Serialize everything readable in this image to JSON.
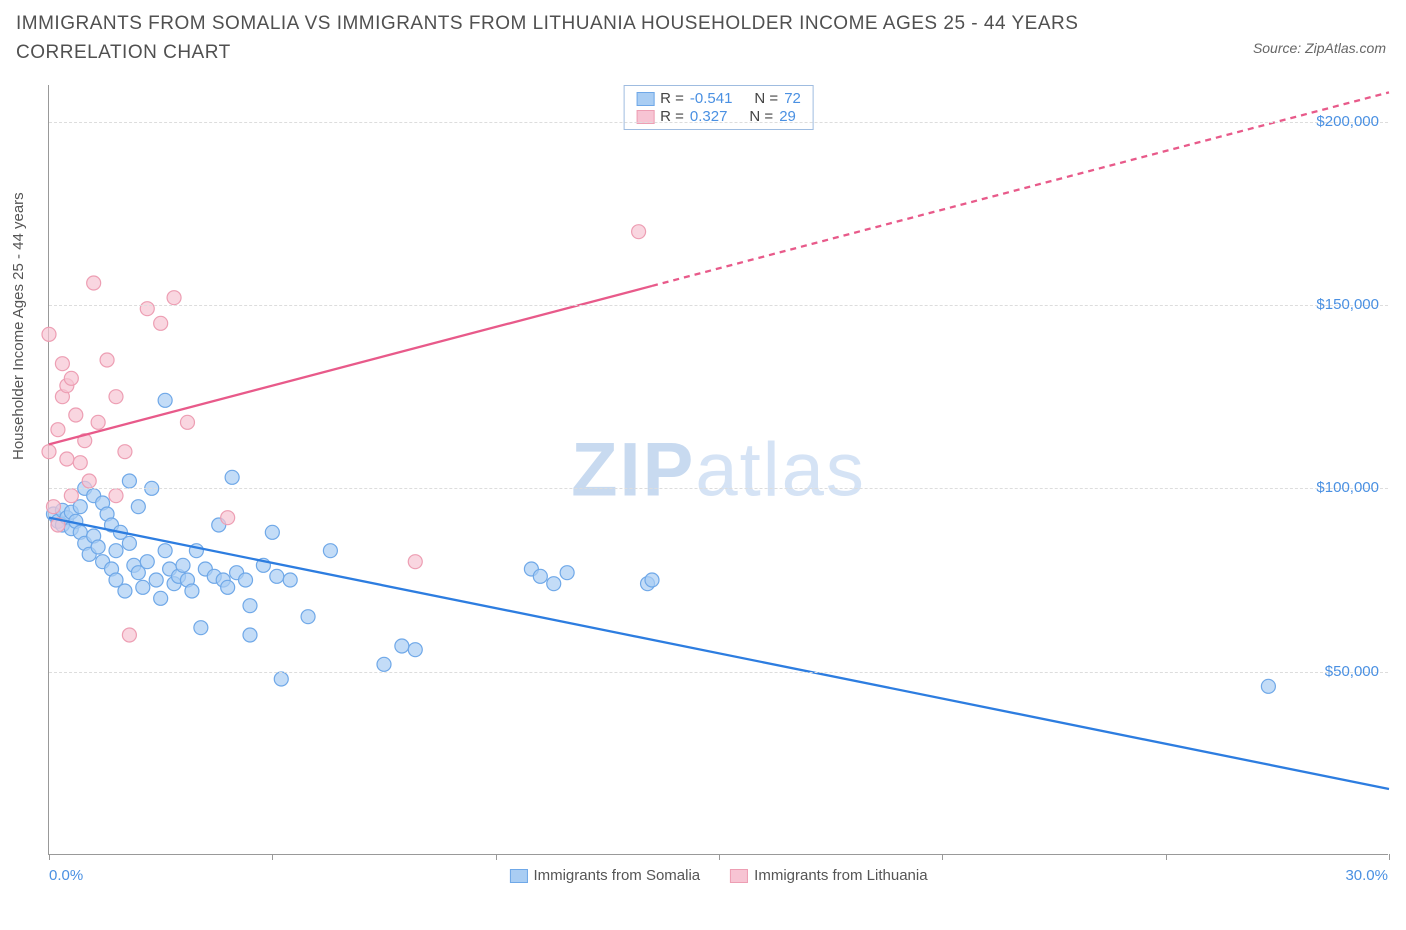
{
  "title": "IMMIGRANTS FROM SOMALIA VS IMMIGRANTS FROM LITHUANIA HOUSEHOLDER INCOME AGES 25 - 44 YEARS CORRELATION CHART",
  "source": "Source: ZipAtlas.com",
  "watermark_bold": "ZIP",
  "watermark_light": "atlas",
  "ylabel": "Householder Income Ages 25 - 44 years",
  "chart": {
    "type": "scatter",
    "x_domain": [
      0,
      30
    ],
    "y_domain": [
      0,
      210000
    ],
    "x_ticks_pct": [
      0,
      5,
      10,
      15,
      20,
      25,
      30
    ],
    "x_labels": {
      "min": "0.0%",
      "max": "30.0%"
    },
    "y_gridlines": [
      50000,
      100000,
      150000,
      200000
    ],
    "y_tick_labels": [
      "$50,000",
      "$100,000",
      "$150,000",
      "$200,000"
    ],
    "grid_color": "#dddddd",
    "axis_color": "#999999",
    "background_color": "#ffffff",
    "series": [
      {
        "name": "Immigrants from Somalia",
        "color_fill": "#a9cdf3",
        "color_stroke": "#6fa8e8",
        "trend_color": "#2d7de0",
        "marker_radius": 7,
        "trend": {
          "x1": 0,
          "y1": 92000,
          "x2": 30,
          "y2": 18000,
          "dash_from_x": 30
        },
        "R": "-0.541",
        "N": "72",
        "points": [
          [
            0.1,
            93000
          ],
          [
            0.2,
            91000
          ],
          [
            0.3,
            94000
          ],
          [
            0.3,
            90000
          ],
          [
            0.4,
            92000
          ],
          [
            0.5,
            93500
          ],
          [
            0.5,
            89000
          ],
          [
            0.6,
            91000
          ],
          [
            0.7,
            95000
          ],
          [
            0.7,
            88000
          ],
          [
            0.8,
            85000
          ],
          [
            0.8,
            100000
          ],
          [
            0.9,
            82000
          ],
          [
            1.0,
            98000
          ],
          [
            1.0,
            87000
          ],
          [
            1.1,
            84000
          ],
          [
            1.2,
            96000
          ],
          [
            1.2,
            80000
          ],
          [
            1.3,
            93000
          ],
          [
            1.4,
            78000
          ],
          [
            1.4,
            90000
          ],
          [
            1.5,
            83000
          ],
          [
            1.5,
            75000
          ],
          [
            1.6,
            88000
          ],
          [
            1.7,
            72000
          ],
          [
            1.8,
            85000
          ],
          [
            1.8,
            102000
          ],
          [
            1.9,
            79000
          ],
          [
            2.0,
            77000
          ],
          [
            2.0,
            95000
          ],
          [
            2.1,
            73000
          ],
          [
            2.2,
            80000
          ],
          [
            2.3,
            100000
          ],
          [
            2.4,
            75000
          ],
          [
            2.5,
            70000
          ],
          [
            2.6,
            83000
          ],
          [
            2.6,
            124000
          ],
          [
            2.7,
            78000
          ],
          [
            2.8,
            74000
          ],
          [
            2.9,
            76000
          ],
          [
            3.0,
            79000
          ],
          [
            3.1,
            75000
          ],
          [
            3.2,
            72000
          ],
          [
            3.3,
            83000
          ],
          [
            3.4,
            62000
          ],
          [
            3.5,
            78000
          ],
          [
            3.7,
            76000
          ],
          [
            3.8,
            90000
          ],
          [
            3.9,
            75000
          ],
          [
            4.0,
            73000
          ],
          [
            4.1,
            103000
          ],
          [
            4.2,
            77000
          ],
          [
            4.4,
            75000
          ],
          [
            4.5,
            68000
          ],
          [
            4.5,
            60000
          ],
          [
            4.8,
            79000
          ],
          [
            5.0,
            88000
          ],
          [
            5.1,
            76000
          ],
          [
            5.2,
            48000
          ],
          [
            5.4,
            75000
          ],
          [
            5.8,
            65000
          ],
          [
            6.3,
            83000
          ],
          [
            7.5,
            52000
          ],
          [
            7.9,
            57000
          ],
          [
            8.2,
            56000
          ],
          [
            10.8,
            78000
          ],
          [
            11.0,
            76000
          ],
          [
            11.3,
            74000
          ],
          [
            11.6,
            77000
          ],
          [
            13.4,
            74000
          ],
          [
            13.5,
            75000
          ],
          [
            27.3,
            46000
          ]
        ]
      },
      {
        "name": "Immigrants from Lithuania",
        "color_fill": "#f7c4d3",
        "color_stroke": "#ed9eb3",
        "trend_color": "#e85a8a",
        "marker_radius": 7,
        "trend": {
          "x1": 0,
          "y1": 112000,
          "x2": 30,
          "y2": 208000,
          "dash_from_x": 13.5
        },
        "R": "0.327",
        "N": "29",
        "points": [
          [
            0.0,
            142000
          ],
          [
            0.0,
            110000
          ],
          [
            0.1,
            95000
          ],
          [
            0.2,
            116000
          ],
          [
            0.2,
            90000
          ],
          [
            0.3,
            134000
          ],
          [
            0.3,
            125000
          ],
          [
            0.4,
            128000
          ],
          [
            0.4,
            108000
          ],
          [
            0.5,
            130000
          ],
          [
            0.5,
            98000
          ],
          [
            0.6,
            120000
          ],
          [
            0.7,
            107000
          ],
          [
            0.8,
            113000
          ],
          [
            0.9,
            102000
          ],
          [
            1.0,
            156000
          ],
          [
            1.1,
            118000
          ],
          [
            1.3,
            135000
          ],
          [
            1.5,
            125000
          ],
          [
            1.5,
            98000
          ],
          [
            1.7,
            110000
          ],
          [
            1.8,
            60000
          ],
          [
            2.2,
            149000
          ],
          [
            2.5,
            145000
          ],
          [
            2.8,
            152000
          ],
          [
            3.1,
            118000
          ],
          [
            4.0,
            92000
          ],
          [
            8.2,
            80000
          ],
          [
            13.2,
            170000
          ]
        ]
      }
    ],
    "legend_box": {
      "rows": [
        {
          "swatch_fill": "#a9cdf3",
          "swatch_stroke": "#6fa8e8",
          "R_label": "R =",
          "R": "-0.541",
          "N_label": "N =",
          "N": "72"
        },
        {
          "swatch_fill": "#f7c4d3",
          "swatch_stroke": "#ed9eb3",
          "R_label": "R =",
          "R": " 0.327",
          "N_label": "N =",
          "N": "29"
        }
      ]
    }
  }
}
